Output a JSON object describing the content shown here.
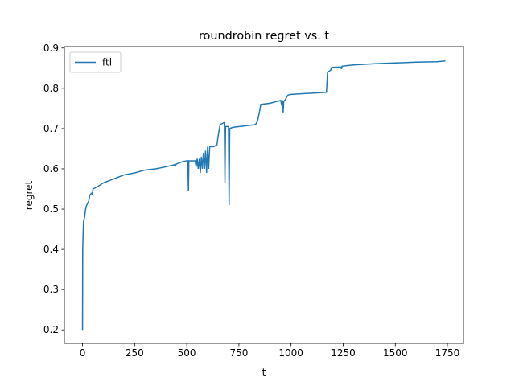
{
  "chart_data": {
    "type": "line",
    "title": "roundrobin regret vs. t",
    "xlabel": "t",
    "ylabel": "regret",
    "x": [
      0,
      1,
      3,
      5,
      10,
      15,
      20,
      30,
      35,
      45,
      48,
      50,
      70,
      100,
      150,
      200,
      250,
      300,
      350,
      400,
      440,
      445,
      450,
      480,
      500,
      505,
      508,
      510,
      540,
      545,
      550,
      555,
      560,
      565,
      570,
      575,
      580,
      585,
      590,
      595,
      600,
      605,
      610,
      630,
      645,
      650,
      660,
      680,
      683,
      686,
      700,
      703,
      706,
      720,
      800,
      830,
      840,
      850,
      855,
      900,
      950,
      955,
      960,
      962,
      965,
      970,
      985,
      1000,
      1100,
      1170,
      1175,
      1190,
      1195,
      1240,
      1242,
      1245,
      1280,
      1300,
      1400,
      1500,
      1600,
      1700,
      1740
    ],
    "series": [
      {
        "name": "ftl",
        "color": "#1f77b4",
        "values": [
          0.2,
          0.4,
          0.44,
          0.47,
          0.48,
          0.5,
          0.51,
          0.52,
          0.535,
          0.54,
          0.535,
          0.55,
          0.555,
          0.565,
          0.575,
          0.585,
          0.59,
          0.597,
          0.6,
          0.605,
          0.61,
          0.607,
          0.612,
          0.618,
          0.62,
          0.62,
          0.545,
          0.62,
          0.62,
          0.605,
          0.625,
          0.6,
          0.625,
          0.59,
          0.63,
          0.6,
          0.64,
          0.6,
          0.645,
          0.59,
          0.655,
          0.6,
          0.655,
          0.655,
          0.66,
          0.68,
          0.71,
          0.715,
          0.565,
          0.705,
          0.705,
          0.51,
          0.7,
          0.703,
          0.708,
          0.71,
          0.72,
          0.745,
          0.76,
          0.763,
          0.77,
          0.76,
          0.77,
          0.74,
          0.768,
          0.77,
          0.783,
          0.785,
          0.788,
          0.79,
          0.84,
          0.845,
          0.852,
          0.853,
          0.848,
          0.855,
          0.857,
          0.858,
          0.861,
          0.863,
          0.865,
          0.866,
          0.868
        ]
      }
    ],
    "xlim": [
      -87,
      1827
    ],
    "ylim": [
      0.1665,
      0.9035
    ],
    "xticks": [
      0,
      250,
      500,
      750,
      1000,
      1250,
      1500,
      1750
    ],
    "yticks": [
      0.2,
      0.3,
      0.4,
      0.5,
      0.6,
      0.7,
      0.8,
      0.9
    ],
    "grid": false,
    "legend": "upper left"
  }
}
